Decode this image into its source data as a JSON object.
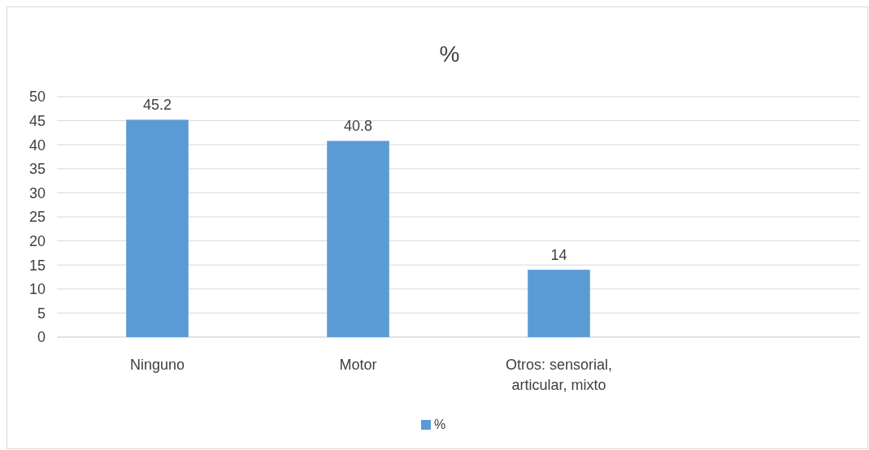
{
  "chart_data": {
    "type": "bar",
    "title": "%",
    "categories": [
      "Ninguno",
      "Motor",
      "Otros: sensorial, articular, mixto",
      null
    ],
    "series": [
      {
        "name": "%",
        "color": "#5b9bd5",
        "values": [
          45.2,
          40.8,
          14,
          null
        ]
      }
    ],
    "ylim": [
      0,
      50
    ],
    "yticks": [
      0,
      5,
      10,
      15,
      20,
      25,
      30,
      35,
      40,
      45,
      50
    ],
    "grid": "y",
    "legend": "bottom",
    "data_labels": true
  }
}
